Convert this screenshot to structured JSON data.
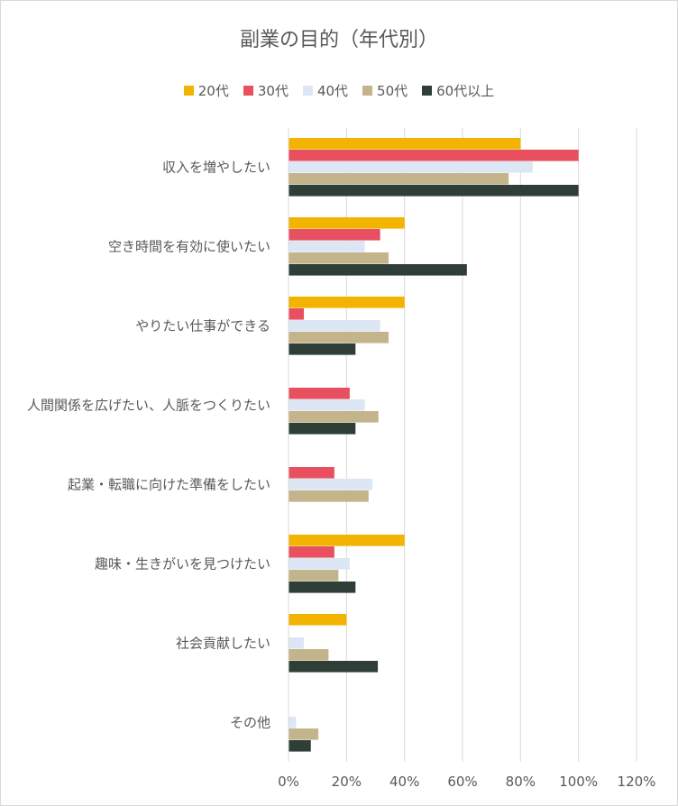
{
  "chart_data": {
    "type": "bar",
    "orientation": "horizontal",
    "title": "副業の目的（年代別）",
    "categories": [
      "収入を増やしたい",
      "空き時間を有効に使いたい",
      "やりたい仕事ができる",
      "人間関係を広げたい、人脈をつくりたい",
      "起業・転職に向けた準備をしたい",
      "趣味・生きがいを見つけたい",
      "社会貢献したい",
      "その他"
    ],
    "series": [
      {
        "name": "20代",
        "color": "#f2b400",
        "values": [
          80,
          40,
          40,
          0,
          0,
          40,
          20,
          0
        ]
      },
      {
        "name": "30代",
        "color": "#e8505f",
        "values": [
          100,
          31.6,
          5.3,
          21.1,
          15.8,
          15.8,
          0,
          0
        ]
      },
      {
        "name": "40代",
        "color": "#dce6f4",
        "values": [
          84.2,
          26.3,
          31.6,
          26.3,
          28.9,
          21.1,
          5.3,
          2.6
        ]
      },
      {
        "name": "50代",
        "color": "#c4b48c",
        "values": [
          75.9,
          34.5,
          34.5,
          31,
          27.6,
          17.2,
          13.8,
          10.3
        ]
      },
      {
        "name": "60代以上",
        "color": "#2f3f38",
        "values": [
          100,
          61.5,
          23.1,
          23.1,
          0,
          23.1,
          30.8,
          7.7
        ]
      }
    ],
    "xlim": [
      0,
      120
    ],
    "xticks": [
      "0%",
      "20%",
      "40%",
      "60%",
      "80%",
      "100%",
      "120%"
    ],
    "grid": true,
    "legend_position": "top"
  }
}
